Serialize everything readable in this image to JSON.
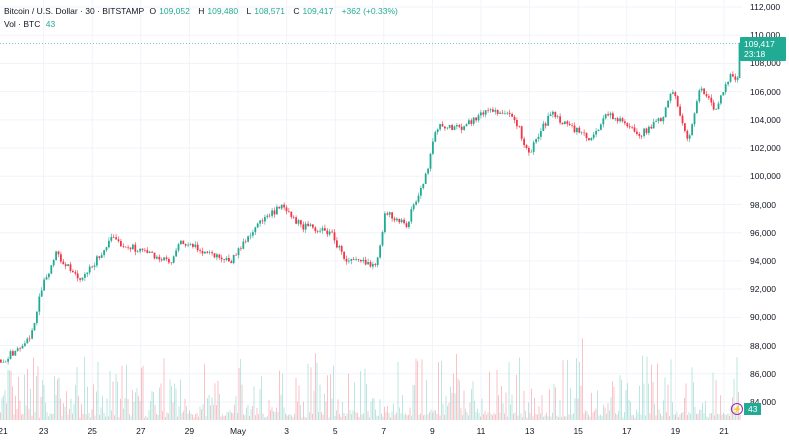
{
  "legend": {
    "symbol": "Bitcoin / U.S. Dollar · 30 · BITSTAMP",
    "open_label": "O",
    "open": "109,052",
    "high_label": "H",
    "high": "109,480",
    "low_label": "L",
    "low": "108,571",
    "close_label": "C",
    "close": "109,417",
    "change": "+362 (+0.33%)",
    "volume_label": "Vol · BTC",
    "volume": "43"
  },
  "price_tag": {
    "price": "109,417",
    "countdown": "23:18"
  },
  "volume_tag": "43",
  "colors": {
    "up": "#22ab94",
    "down": "#f23645",
    "grid": "#f0f3fa"
  },
  "chart_data": {
    "type": "candlestick",
    "title": "Bitcoin / U.S. Dollar · 30 · BITSTAMP",
    "interval": "30",
    "ylim": [
      84000,
      112000
    ],
    "y_ticks": [
      "112,000",
      "110,000",
      "108,000",
      "106,000",
      "104,000",
      "102,000",
      "100,000",
      "98,000",
      "96,000",
      "94,000",
      "92,000",
      "90,000",
      "88,000",
      "86,000",
      "84,000"
    ],
    "y_tick_values": [
      112000,
      110000,
      108000,
      106000,
      104000,
      102000,
      100000,
      98000,
      96000,
      94000,
      92000,
      90000,
      88000,
      86000,
      84000
    ],
    "x_ticks": [
      {
        "label": "21",
        "day": 0
      },
      {
        "label": "23",
        "day": 2
      },
      {
        "label": "25",
        "day": 4
      },
      {
        "label": "27",
        "day": 6
      },
      {
        "label": "29",
        "day": 8
      },
      {
        "label": "May",
        "day": 10
      },
      {
        "label": "3",
        "day": 12
      },
      {
        "label": "5",
        "day": 14
      },
      {
        "label": "7",
        "day": 16
      },
      {
        "label": "9",
        "day": 18
      },
      {
        "label": "11",
        "day": 20
      },
      {
        "label": "13",
        "day": 22
      },
      {
        "label": "15",
        "day": 24
      },
      {
        "label": "17",
        "day": 26
      },
      {
        "label": "19",
        "day": 28
      },
      {
        "label": "21",
        "day": 30
      }
    ],
    "price_path_days_since_apr21": [
      0.1,
      0.33,
      1.44,
      1.85,
      2.47,
      3.5,
      4.73,
      6.38,
      7.2,
      7.61,
      9.67,
      10.7,
      11.73,
      12.55,
      13.79,
      14.4,
      15.64,
      16.05,
      16.87,
      17.7,
      18.1,
      19.14,
      20.37,
      21.4,
      21.9,
      22.84,
      24.49,
      25.1,
      26.54,
      27.37,
      27.86,
      28.52,
      29.0,
      29.63,
      30.25,
      30.53,
      30.66
    ],
    "price_path_values": [
      87000,
      87000,
      88500,
      92000,
      94500,
      92500,
      95500,
      94500,
      93800,
      95300,
      94000,
      96500,
      97800,
      96500,
      96000,
      94000,
      93800,
      97500,
      96500,
      100000,
      103500,
      103500,
      104800,
      104000,
      101500,
      104500,
      102500,
      104500,
      103000,
      104000,
      106000,
      102500,
      106500,
      104500,
      107500,
      106800,
      109417
    ],
    "last_price": 109417
  }
}
